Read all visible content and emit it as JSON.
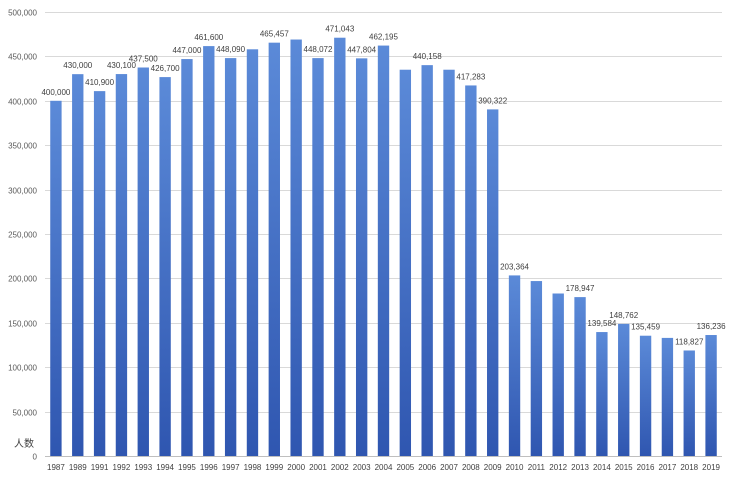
{
  "chart_data": {
    "type": "bar",
    "title": "",
    "xlabel": "",
    "ylabel": "人数",
    "ylim": [
      0,
      500000
    ],
    "yticks": [
      0,
      50000,
      100000,
      150000,
      200000,
      250000,
      300000,
      350000,
      400000,
      450000,
      500000
    ],
    "ytick_labels": [
      "0",
      "50,000",
      "100,000",
      "150,000",
      "200,000",
      "250,000",
      "300,000",
      "350,000",
      "400,000",
      "450,000",
      "500,000"
    ],
    "grid": true,
    "legend": "none",
    "bar_color": "#4472C4",
    "bar_color_top": "#5b8ad8",
    "bar_color_bottom": "#2f56b0",
    "categories": [
      "1987",
      "1989",
      "1991",
      "1992",
      "1993",
      "1994",
      "1995",
      "1996",
      "1997",
      "1998",
      "1999",
      "2000",
      "2001",
      "2002",
      "2003",
      "2004",
      "2005",
      "2006",
      "2007",
      "2008",
      "2009",
      "2010",
      "2011",
      "2012",
      "2013",
      "2014",
      "2015",
      "2016",
      "2017",
      "2018",
      "2019"
    ],
    "values": [
      400000,
      430000,
      410900,
      430100,
      437500,
      426700,
      447000,
      461600,
      448090,
      458000,
      465457,
      469000,
      448072,
      471043,
      447804,
      462195,
      435000,
      440158,
      435000,
      417283,
      390322,
      203364,
      197000,
      183000,
      178947,
      139584,
      148762,
      135459,
      133000,
      118827,
      136236
    ],
    "data_labels": [
      "400,000",
      "430,000",
      "410,900",
      "430,100",
      "437,500",
      "426,700",
      "447,000",
      "461,600",
      "448,090",
      "",
      "465,457",
      "",
      "448,072",
      "471,043",
      "447,804",
      "462,195",
      "",
      "440,158",
      "",
      "417,283",
      "390,322",
      "203,364",
      "",
      "",
      "178,947",
      "139,584",
      "148,762",
      "135,459",
      "",
      "118,827",
      "136,236"
    ]
  }
}
